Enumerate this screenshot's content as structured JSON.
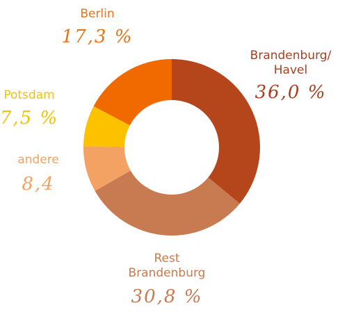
{
  "chart_data": {
    "type": "donut",
    "categories": [
      "Brandenburg/ Havel",
      "Rest Brandenburg",
      "andere",
      "Potsdam",
      "Berlin"
    ],
    "values": [
      36.0,
      30.8,
      8.4,
      7.5,
      17.3
    ],
    "value_labels": [
      "36,0 %",
      "30,8 %",
      "8,4",
      "7,5 %",
      "17,3 %"
    ],
    "colors": [
      "#b5451b",
      "#c87a50",
      "#f4a263",
      "#fcc200",
      "#f06a00"
    ]
  }
}
